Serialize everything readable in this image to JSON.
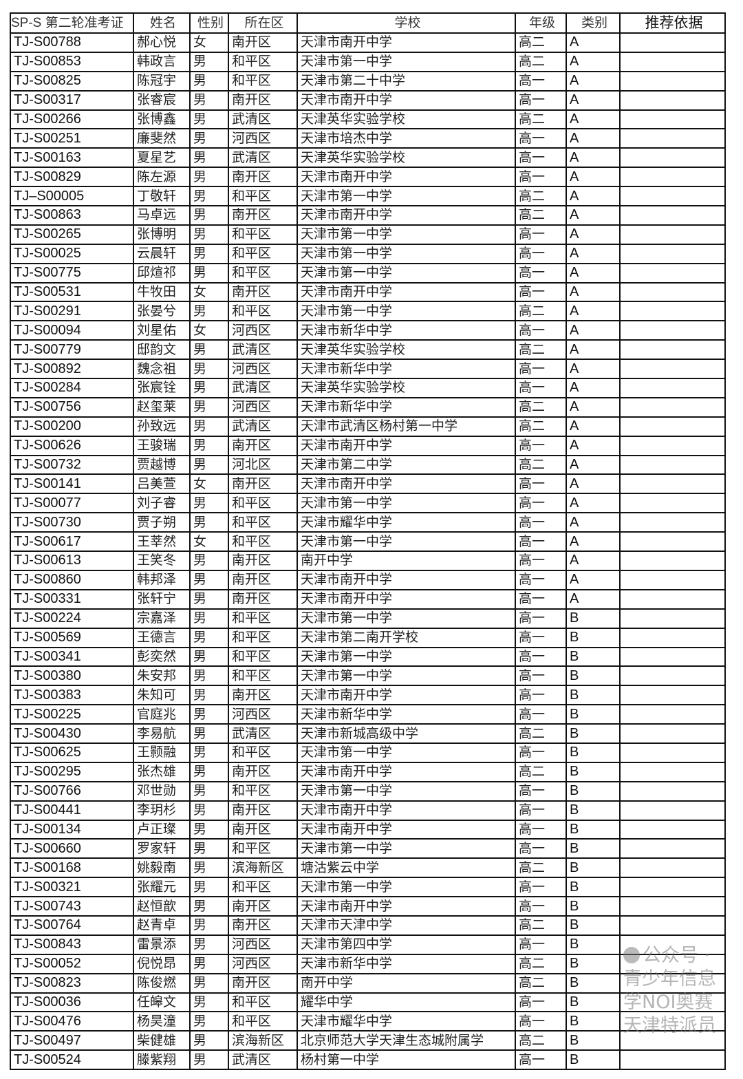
{
  "table": {
    "headers": [
      "SP-S 第二轮准考证",
      "姓名",
      "性别",
      "所在区",
      "学校",
      "年级",
      "类别",
      "推荐依据"
    ],
    "rows": [
      [
        "TJ-S00788",
        "郝心悦",
        "女",
        "南开区",
        "天津市南开中学",
        "高二",
        "A",
        ""
      ],
      [
        "TJ-S00853",
        "韩政言",
        "男",
        "和平区",
        "天津市第一中学",
        "高二",
        "A",
        ""
      ],
      [
        "TJ-S00825",
        "陈冠宇",
        "男",
        "和平区",
        "天津市第二十中学",
        "高一",
        "A",
        ""
      ],
      [
        "TJ-S00317",
        "张睿宸",
        "男",
        "南开区",
        "天津市南开中学",
        "高一",
        "A",
        ""
      ],
      [
        "TJ-S00266",
        "张博鑫",
        "男",
        "武清区",
        "天津英华实验学校",
        "高二",
        "A",
        ""
      ],
      [
        "TJ-S00251",
        "廉斐然",
        "男",
        "河西区",
        "天津市培杰中学",
        "高一",
        "A",
        ""
      ],
      [
        "TJ-S00163",
        "夏星艺",
        "男",
        "武清区",
        "天津英华实验学校",
        "高一",
        "A",
        ""
      ],
      [
        "TJ-S00829",
        "陈左源",
        "男",
        "南开区",
        "天津市南开中学",
        "高一",
        "A",
        ""
      ],
      [
        "TJ–S00005",
        "丁敬轩",
        "男",
        "和平区",
        "天津市第一中学",
        "高二",
        "A",
        ""
      ],
      [
        "TJ-S00863",
        "马卓远",
        "男",
        "南开区",
        "天津市南开中学",
        "高二",
        "A",
        ""
      ],
      [
        "TJ-S00265",
        "张博明",
        "男",
        "和平区",
        "天津市第一中学",
        "高一",
        "A",
        ""
      ],
      [
        "TJ-S00025",
        "云晨轩",
        "男",
        "和平区",
        "天津市第一中学",
        "高一",
        "A",
        ""
      ],
      [
        "TJ-S00775",
        "邱煊祁",
        "男",
        "和平区",
        "天津市第一中学",
        "高一",
        "A",
        ""
      ],
      [
        "TJ-S00531",
        "牛牧田",
        "女",
        "南开区",
        "天津市南开中学",
        "高一",
        "A",
        ""
      ],
      [
        "TJ-S00291",
        "张晏兮",
        "男",
        "和平区",
        "天津市第一中学",
        "高二",
        "A",
        ""
      ],
      [
        "TJ-S00094",
        "刘星佑",
        "女",
        "河西区",
        "天津市新华中学",
        "高一",
        "A",
        ""
      ],
      [
        "TJ-S00779",
        "邸韵文",
        "男",
        "武清区",
        "天津英华实验学校",
        "高二",
        "A",
        ""
      ],
      [
        "TJ-S00892",
        "魏念祖",
        "男",
        "河西区",
        "天津市新华中学",
        "高一",
        "A",
        ""
      ],
      [
        "TJ-S00284",
        "张宸铨",
        "男",
        "武清区",
        "天津英华实验学校",
        "高一",
        "A",
        ""
      ],
      [
        "TJ-S00756",
        "赵玺莱",
        "男",
        "河西区",
        "天津市新华中学",
        "高二",
        "A",
        ""
      ],
      [
        "TJ-S00200",
        "孙致远",
        "男",
        "武清区",
        "天津市武清区杨村第一中学",
        "高二",
        "A",
        ""
      ],
      [
        "TJ-S00626",
        "王骏瑞",
        "男",
        "南开区",
        "天津市南开中学",
        "高一",
        "A",
        ""
      ],
      [
        "TJ-S00732",
        "贾越博",
        "男",
        "河北区",
        "天津市第二中学",
        "高二",
        "A",
        ""
      ],
      [
        "TJ-S00141",
        "吕美萱",
        "女",
        "南开区",
        "天津市南开中学",
        "高一",
        "A",
        ""
      ],
      [
        "TJ-S00077",
        "刘子睿",
        "男",
        "和平区",
        "天津市第一中学",
        "高一",
        "A",
        ""
      ],
      [
        "TJ-S00730",
        "贾子朔",
        "男",
        "和平区",
        "天津市耀华中学",
        "高一",
        "A",
        ""
      ],
      [
        "TJ-S00617",
        "王莘然",
        "女",
        "和平区",
        "天津市第一中学",
        "高一",
        "A",
        ""
      ],
      [
        "TJ-S00613",
        "王笑冬",
        "男",
        "南开区",
        "南开中学",
        "高一",
        "A",
        ""
      ],
      [
        "TJ-S00860",
        "韩邦泽",
        "男",
        "南开区",
        "天津市南开中学",
        "高一",
        "A",
        ""
      ],
      [
        "TJ-S00331",
        "张轩宁",
        "男",
        "南开区",
        "天津市南开中学",
        "高一",
        "A",
        ""
      ],
      [
        "TJ-S00224",
        "宗嘉泽",
        "男",
        "和平区",
        "天津市第一中学",
        "高一",
        "B",
        ""
      ],
      [
        "TJ-S00569",
        "王德言",
        "男",
        "和平区",
        "天津市第二南开学校",
        "高一",
        "B",
        ""
      ],
      [
        "TJ-S00341",
        "彭奕然",
        "男",
        "和平区",
        "天津市第一中学",
        "高一",
        "B",
        ""
      ],
      [
        "TJ-S00380",
        "朱安邦",
        "男",
        "和平区",
        "天津市第一中学",
        "高一",
        "B",
        ""
      ],
      [
        "TJ-S00383",
        "朱知可",
        "男",
        "南开区",
        "天津市南开中学",
        "高一",
        "B",
        ""
      ],
      [
        "TJ-S00225",
        "官庭兆",
        "男",
        "河西区",
        "天津市新华中学",
        "高一",
        "B",
        ""
      ],
      [
        "TJ-S00430",
        "李易航",
        "男",
        "武清区",
        "天津市新城高级中学",
        "高二",
        "B",
        ""
      ],
      [
        "TJ-S00625",
        "王颢融",
        "男",
        "和平区",
        "天津市第一中学",
        "高一",
        "B",
        ""
      ],
      [
        "TJ-S00295",
        "张杰雄",
        "男",
        "南开区",
        "天津市南开中学",
        "高二",
        "B",
        ""
      ],
      [
        "TJ-S00766",
        "邓世勋",
        "男",
        "和平区",
        "天津市第一中学",
        "高一",
        "B",
        ""
      ],
      [
        "TJ-S00441",
        "李玥杉",
        "男",
        "南开区",
        "天津市南开中学",
        "高一",
        "B",
        ""
      ],
      [
        "TJ-S00134",
        "卢正璨",
        "男",
        "南开区",
        "天津市南开中学",
        "高一",
        "B",
        ""
      ],
      [
        "TJ-S00660",
        "罗家轩",
        "男",
        "和平区",
        "天津市第一中学",
        "高一",
        "B",
        ""
      ],
      [
        "TJ-S00168",
        "姚毅南",
        "男",
        "滨海新区",
        "塘沽紫云中学",
        "高二",
        "B",
        ""
      ],
      [
        "TJ-S00321",
        "张耀元",
        "男",
        "和平区",
        "天津市第一中学",
        "高一",
        "B",
        ""
      ],
      [
        "TJ-S00743",
        "赵恒歆",
        "男",
        "南开区",
        "天津市南开中学",
        "高一",
        "B",
        ""
      ],
      [
        "TJ-S00764",
        "赵青卓",
        "男",
        "南开区",
        "天津市天津中学",
        "高二",
        "B",
        ""
      ],
      [
        "TJ-S00843",
        "雷景添",
        "男",
        "河西区",
        "天津市第四中学",
        "高一",
        "B",
        ""
      ],
      [
        "TJ-S00052",
        "倪悦昂",
        "男",
        "河西区",
        "天津市新华中学",
        "高二",
        "B",
        ""
      ],
      [
        "TJ-S00823",
        "陈俊燃",
        "男",
        "南开区",
        "南开中学",
        "高二",
        "B",
        ""
      ],
      [
        "TJ-S00036",
        "任皞文",
        "男",
        "和平区",
        "耀华中学",
        "高一",
        "B",
        ""
      ],
      [
        "TJ-S00476",
        "杨昊潼",
        "男",
        "和平区",
        "天津市耀华中学",
        "高一",
        "B",
        ""
      ],
      [
        "TJ-S00497",
        "柴健雄",
        "男",
        "滨海新区",
        "北京师范大学天津生态城附属学",
        "高二",
        "B",
        ""
      ],
      [
        "TJ-S00524",
        "滕紫翔",
        "男",
        "武清区",
        "杨村第一中学",
        "高一",
        "B",
        ""
      ]
    ]
  },
  "watermark": "公众号 · 青少年信息学NOI奥赛天津特派员"
}
